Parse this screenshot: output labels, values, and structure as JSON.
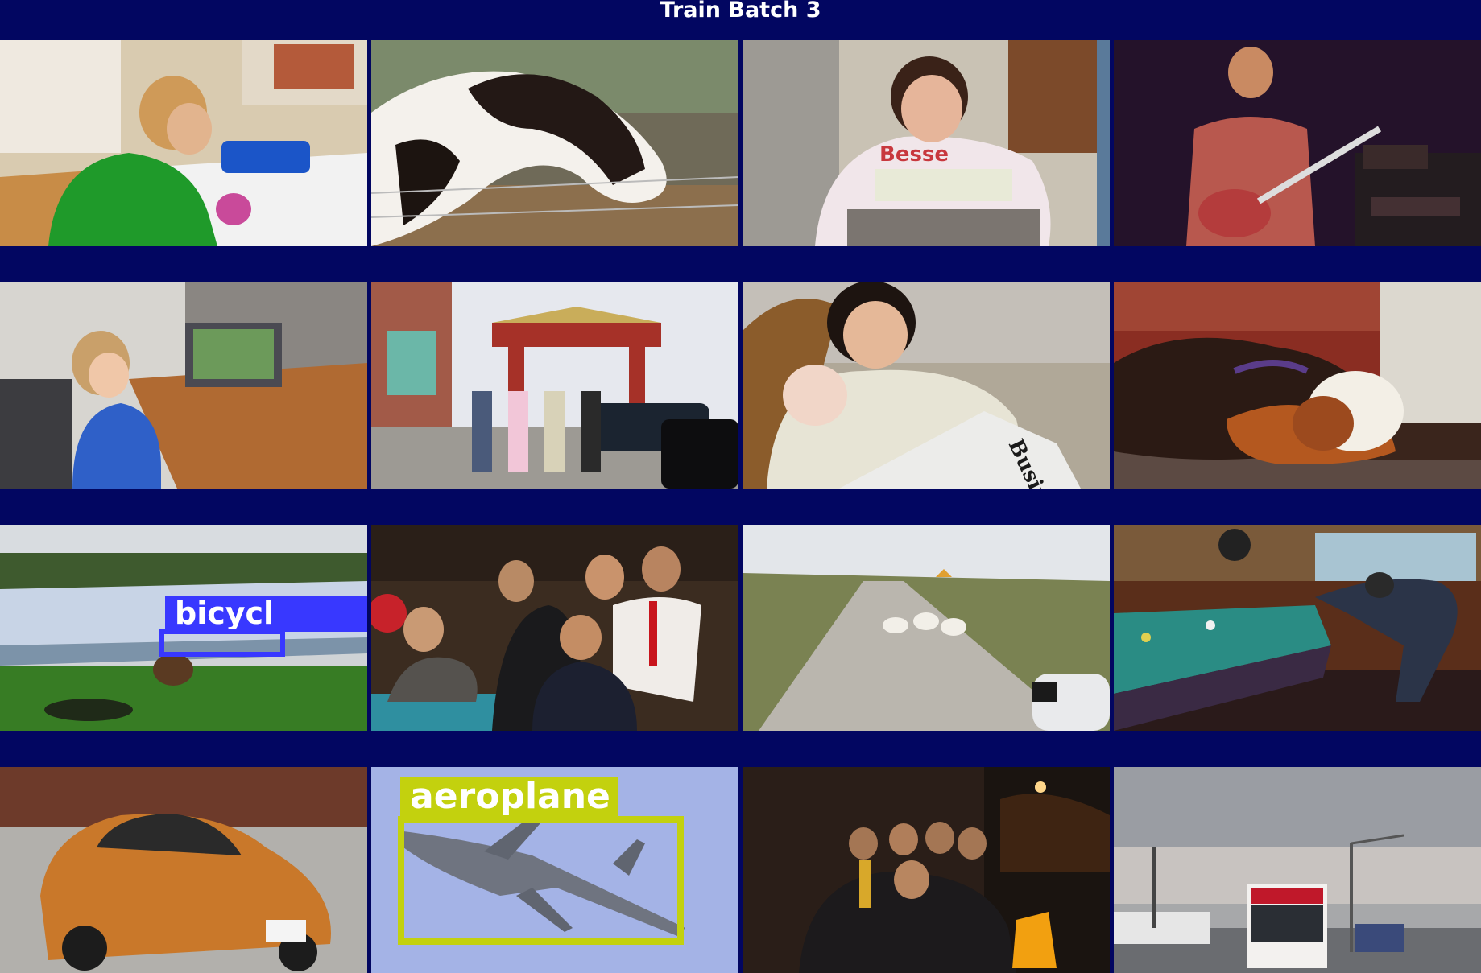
{
  "header": {
    "title": "Train Batch 3"
  },
  "grid": {
    "columns": 4,
    "rows": 4,
    "tiles": [
      {
        "subject": "boy eating cookie"
      },
      {
        "subject": "horse"
      },
      {
        "subject": "woman on phone"
      },
      {
        "subject": "guitarist"
      },
      {
        "subject": "child at laptop"
      },
      {
        "subject": "people at chinese gate"
      },
      {
        "subject": "woman with baby"
      },
      {
        "subject": "beagle sleeping"
      },
      {
        "subject": "velodrome",
        "label": "bicycl",
        "label_color": "#3838ff"
      },
      {
        "subject": "group at restaurant"
      },
      {
        "subject": "sheep on road"
      },
      {
        "subject": "pool player"
      },
      {
        "subject": "orange sports car"
      },
      {
        "subject": "aeroplane in sky",
        "label": "aeroplane",
        "label_color": "#c3d10e"
      },
      {
        "subject": "group at night"
      },
      {
        "subject": "bus on highway"
      }
    ]
  }
}
